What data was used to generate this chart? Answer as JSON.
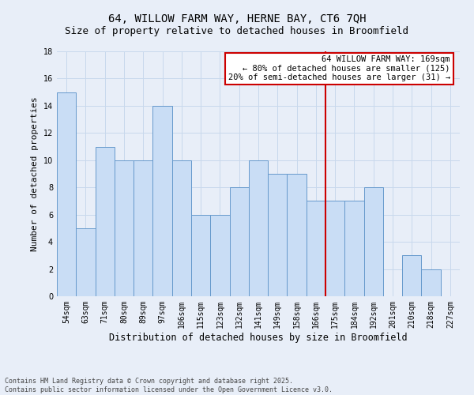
{
  "title": "64, WILLOW FARM WAY, HERNE BAY, CT6 7QH",
  "subtitle": "Size of property relative to detached houses in Broomfield",
  "xlabel": "Distribution of detached houses by size in Broomfield",
  "ylabel": "Number of detached properties",
  "bar_labels": [
    "54sqm",
    "63sqm",
    "71sqm",
    "80sqm",
    "89sqm",
    "97sqm",
    "106sqm",
    "115sqm",
    "123sqm",
    "132sqm",
    "141sqm",
    "149sqm",
    "158sqm",
    "166sqm",
    "175sqm",
    "184sqm",
    "192sqm",
    "201sqm",
    "210sqm",
    "218sqm",
    "227sqm"
  ],
  "bar_values": [
    15,
    5,
    11,
    10,
    10,
    14,
    10,
    6,
    6,
    8,
    10,
    9,
    9,
    7,
    7,
    7,
    8,
    0,
    3,
    2,
    0
  ],
  "bar_color": "#c9ddf5",
  "bar_edgecolor": "#6699cc",
  "vline_x": 13.5,
  "vline_color": "#cc0000",
  "annotation_text": "64 WILLOW FARM WAY: 169sqm\n← 80% of detached houses are smaller (125)\n20% of semi-detached houses are larger (31) →",
  "annotation_box_color": "#cc0000",
  "annotation_bg_color": "#ffffff",
  "ylim": [
    0,
    18
  ],
  "yticks": [
    0,
    2,
    4,
    6,
    8,
    10,
    12,
    14,
    16,
    18
  ],
  "grid_color": "#c8d8ec",
  "bg_color": "#e8eef8",
  "footer": "Contains HM Land Registry data © Crown copyright and database right 2025.\nContains public sector information licensed under the Open Government Licence v3.0.",
  "title_fontsize": 10,
  "subtitle_fontsize": 9,
  "xlabel_fontsize": 8.5,
  "ylabel_fontsize": 8,
  "tick_fontsize": 7,
  "annotation_fontsize": 7.5,
  "footer_fontsize": 6
}
